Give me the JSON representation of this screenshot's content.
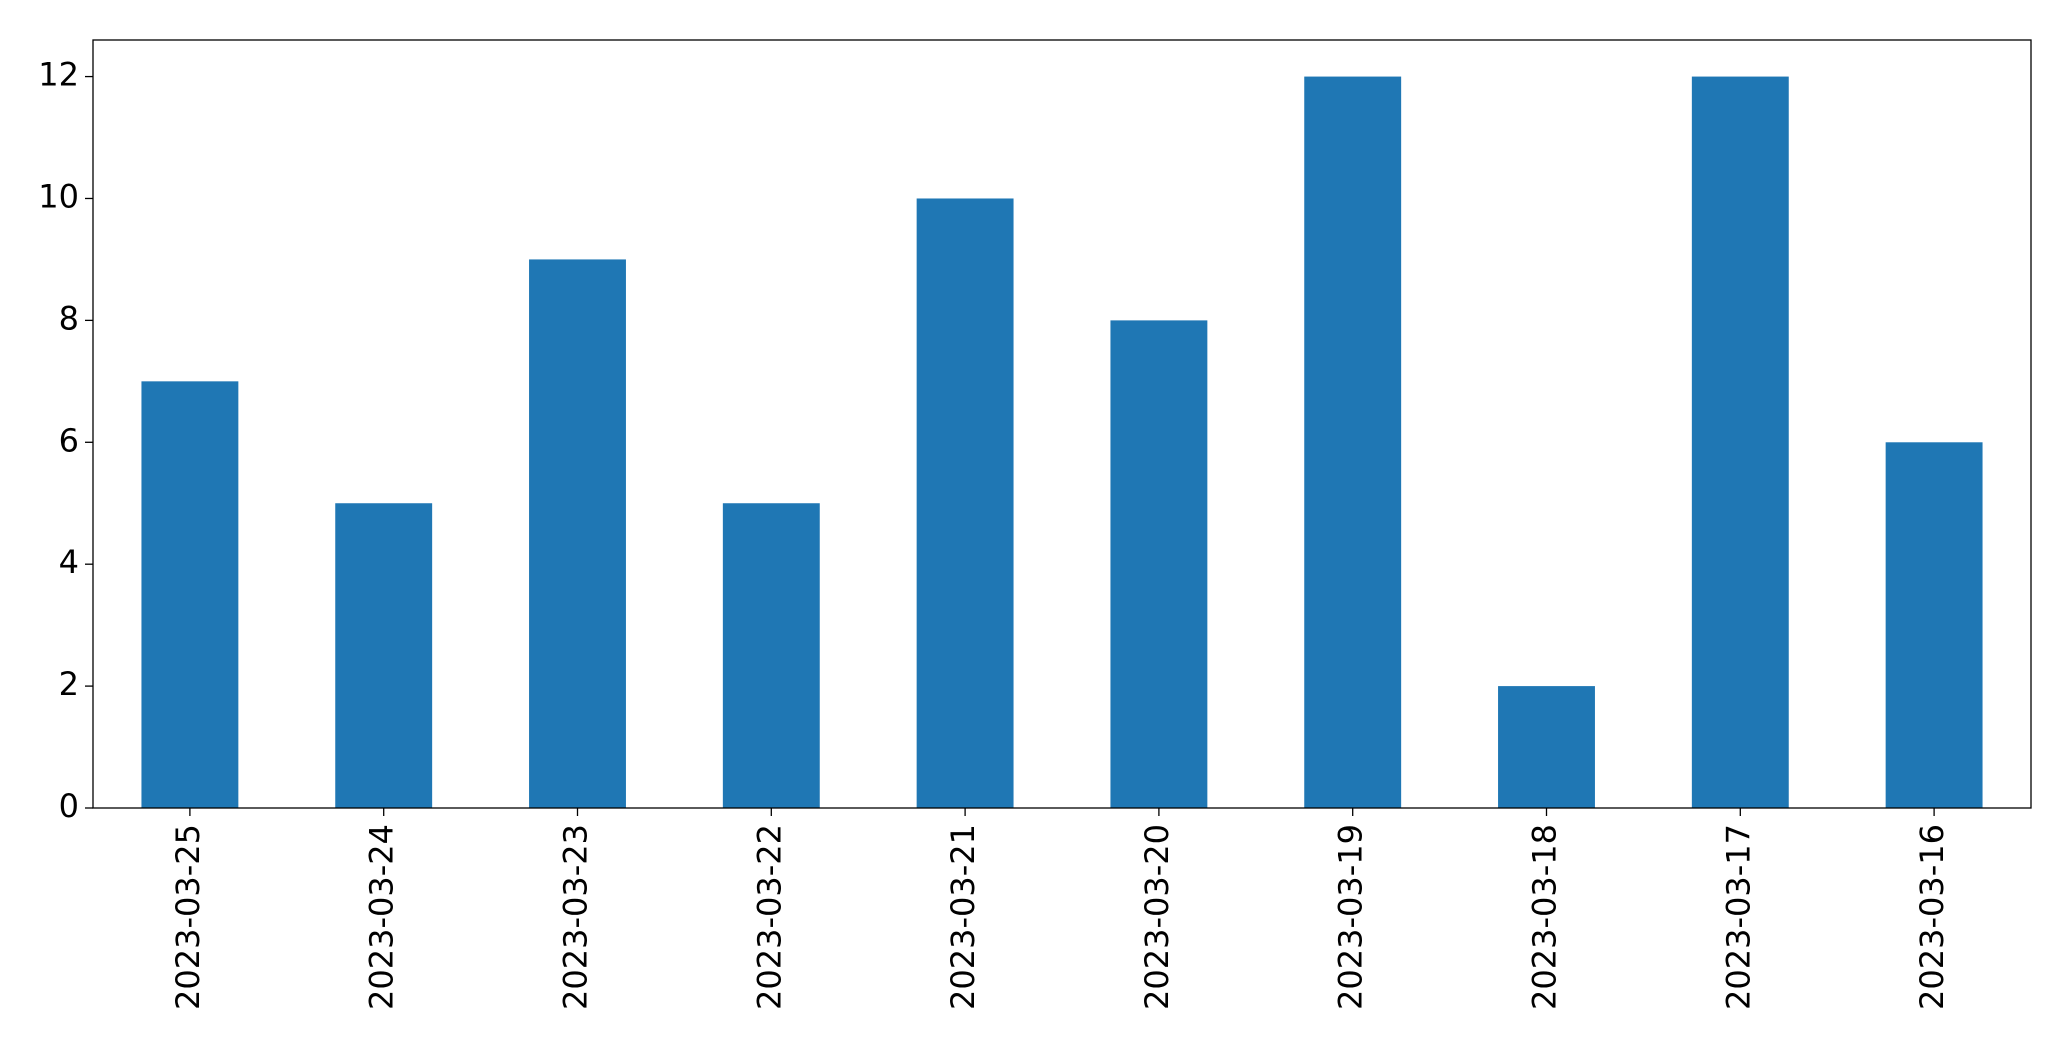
{
  "chart_data": {
    "type": "bar",
    "categories": [
      "2023-03-25",
      "2023-03-24",
      "2023-03-23",
      "2023-03-22",
      "2023-03-21",
      "2023-03-20",
      "2023-03-19",
      "2023-03-18",
      "2023-03-17",
      "2023-03-16"
    ],
    "values": [
      7,
      5,
      9,
      5,
      10,
      8,
      12,
      2,
      12,
      6
    ],
    "color": "#1f77b4",
    "ylim": [
      0,
      12.6
    ],
    "yticks": [
      0,
      2,
      4,
      6,
      8,
      10,
      12
    ],
    "grid": false
  }
}
